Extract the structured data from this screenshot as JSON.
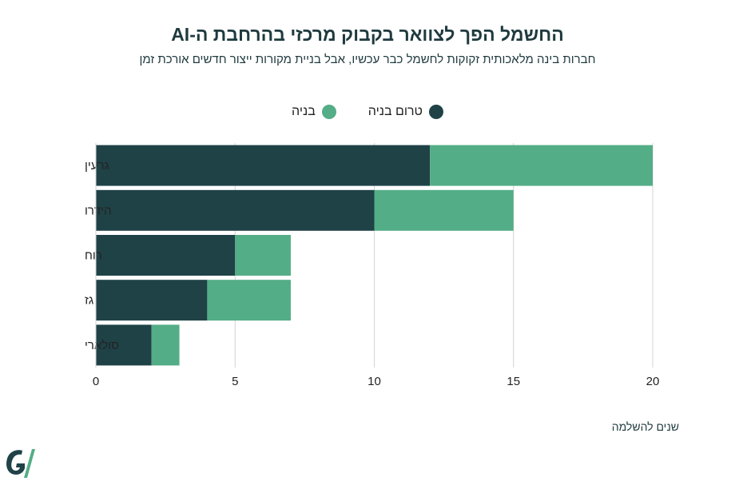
{
  "chart_data": {
    "type": "bar",
    "orientation": "horizontal",
    "stacked": true,
    "title": "החשמל הפך לצוואר בקבוק מרכזי בהרחבת ה-AI",
    "subtitle": "חברות בינה מלאכותית זקוקות לחשמל כבר עכשיו, אבל בניית מקורות ייצור חדשים אורכת זמן",
    "xlabel": "שנים להשלמה",
    "ylabel": "",
    "categories": [
      "גרעין",
      "הידרו",
      "רוח",
      "גז",
      "סולארי"
    ],
    "series": [
      {
        "name": "טרום בניה",
        "color": "#1f4247",
        "values": [
          12,
          10,
          5,
          4,
          2
        ]
      },
      {
        "name": "בניה",
        "color": "#53ad86",
        "values": [
          8,
          5,
          2,
          3,
          1
        ]
      }
    ],
    "xlim": [
      0,
      20
    ],
    "xticks": [
      0,
      5,
      10,
      15,
      20
    ],
    "grid": true,
    "legend_position": "top-center"
  }
}
